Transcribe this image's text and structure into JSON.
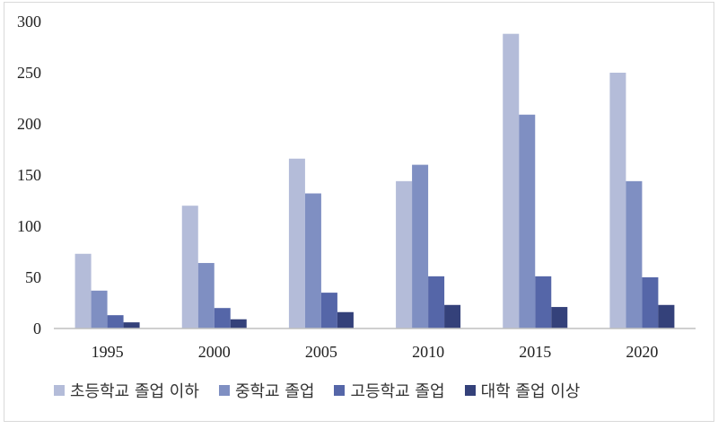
{
  "chart_data": {
    "type": "bar",
    "categories": [
      "1995",
      "2000",
      "2005",
      "2010",
      "2015",
      "2020"
    ],
    "series": [
      {
        "name": "초등학교 졸업 이하",
        "color": "#b4bcd9",
        "values": [
          73,
          120,
          166,
          144,
          288,
          250
        ]
      },
      {
        "name": "중학교 졸업",
        "color": "#7f8fc2",
        "values": [
          37,
          64,
          132,
          160,
          209,
          144
        ]
      },
      {
        "name": "고등학교 졸업",
        "color": "#5566a8",
        "values": [
          13,
          20,
          35,
          51,
          51,
          50
        ]
      },
      {
        "name": "대학 졸업 이상",
        "color": "#34417a",
        "values": [
          6,
          9,
          16,
          23,
          21,
          23
        ]
      }
    ],
    "ylim": [
      0,
      300
    ],
    "yticks": [
      "0",
      "50",
      "100",
      "150",
      "200",
      "250",
      "300"
    ],
    "grid": false,
    "legend_position": "bottom"
  }
}
